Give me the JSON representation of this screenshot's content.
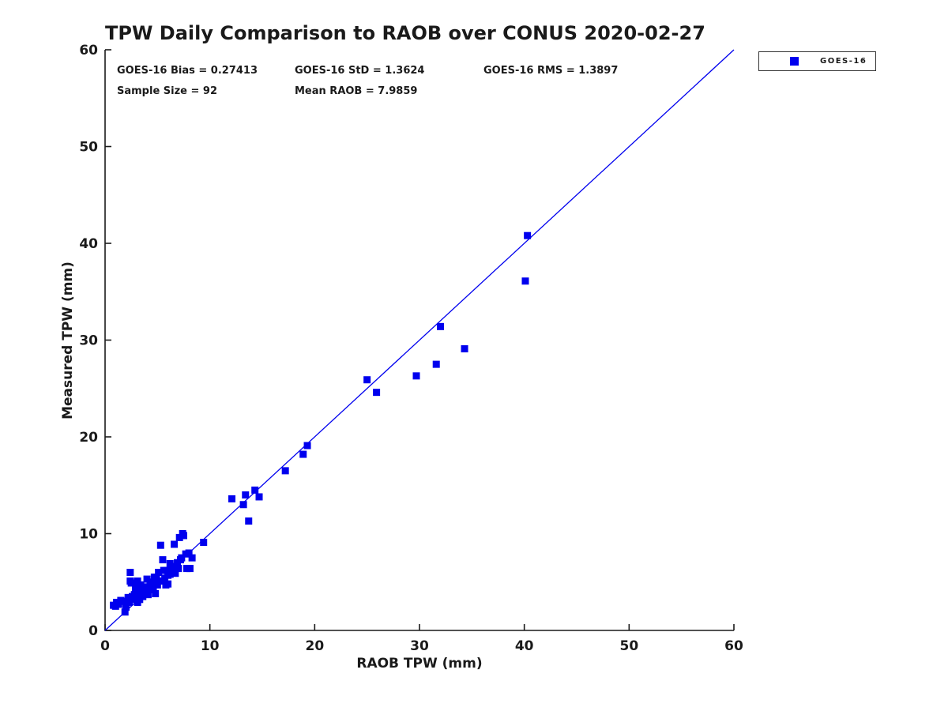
{
  "chart_data": {
    "type": "scatter",
    "title": "TPW Daily Comparison to RAOB over CONUS 2020-02-27",
    "xlabel": "RAOB TPW (mm)",
    "ylabel": "Measured TPW (mm)",
    "xlim": [
      0,
      60
    ],
    "ylim": [
      0,
      60
    ],
    "xticks": [
      0,
      10,
      20,
      30,
      40,
      50,
      60
    ],
    "yticks": [
      0,
      10,
      20,
      30,
      40,
      50,
      60
    ],
    "grid": false,
    "annotations": {
      "bias": "GOES-16 Bias = 0.27413",
      "std": "GOES-16 StD = 1.3624",
      "rms": "GOES-16 RMS = 1.3897",
      "sample_size": "Sample Size = 92",
      "mean_raob": "Mean RAOB = 7.9859"
    },
    "legend": {
      "position": "top-right-outside",
      "entries": [
        {
          "label": "GOES-16",
          "marker": "square",
          "color": "#0000ee"
        }
      ]
    },
    "reference_line": {
      "from": [
        0,
        0
      ],
      "to": [
        60,
        60
      ],
      "color": "#0000ee"
    },
    "axis_color": "#1a1a1a",
    "series": [
      {
        "name": "GOES-16",
        "marker": "square",
        "marker_size": 9,
        "color": "#0000ee",
        "points": [
          [
            0.8,
            2.6
          ],
          [
            1.0,
            2.5
          ],
          [
            1.1,
            2.9
          ],
          [
            1.3,
            2.7
          ],
          [
            1.5,
            3.1
          ],
          [
            1.8,
            3.0
          ],
          [
            1.9,
            1.9
          ],
          [
            2.0,
            2.4
          ],
          [
            2.2,
            3.4
          ],
          [
            2.3,
            2.9
          ],
          [
            2.4,
            5.1
          ],
          [
            2.4,
            6.0
          ],
          [
            2.5,
            4.9
          ],
          [
            2.6,
            3.5
          ],
          [
            2.7,
            3.2
          ],
          [
            2.8,
            3.7
          ],
          [
            2.9,
            4.3
          ],
          [
            3.0,
            3.3
          ],
          [
            3.0,
            4.4
          ],
          [
            3.1,
            2.9
          ],
          [
            3.1,
            5.1
          ],
          [
            3.2,
            3.6
          ],
          [
            3.3,
            3.2
          ],
          [
            3.3,
            4.2
          ],
          [
            3.4,
            4.7
          ],
          [
            3.5,
            3.9
          ],
          [
            3.5,
            4.1
          ],
          [
            3.6,
            3.5
          ],
          [
            3.7,
            4.4
          ],
          [
            3.8,
            3.8
          ],
          [
            3.9,
            4.5
          ],
          [
            4.0,
            4.1
          ],
          [
            4.0,
            5.3
          ],
          [
            4.1,
            3.7
          ],
          [
            4.2,
            4.4
          ],
          [
            4.3,
            4.9
          ],
          [
            4.4,
            4.2
          ],
          [
            4.5,
            5.0
          ],
          [
            4.6,
            4.5
          ],
          [
            4.7,
            5.5
          ],
          [
            4.8,
            4.8
          ],
          [
            4.8,
            3.8
          ],
          [
            4.9,
            5.5
          ],
          [
            5.0,
            4.7
          ],
          [
            5.1,
            6.0
          ],
          [
            5.2,
            5.1
          ],
          [
            5.3,
            8.8
          ],
          [
            5.4,
            5.1
          ],
          [
            5.5,
            7.3
          ],
          [
            5.6,
            6.2
          ],
          [
            5.7,
            5.4
          ],
          [
            5.8,
            4.7
          ],
          [
            5.9,
            6.2
          ],
          [
            6.0,
            5.7
          ],
          [
            6.0,
            4.8
          ],
          [
            6.2,
            6.9
          ],
          [
            6.2,
            5.8
          ],
          [
            6.4,
            6.6
          ],
          [
            6.5,
            6.0
          ],
          [
            6.6,
            8.9
          ],
          [
            6.7,
            5.9
          ],
          [
            6.8,
            6.6
          ],
          [
            6.9,
            7.0
          ],
          [
            7.0,
            6.4
          ],
          [
            7.1,
            9.6
          ],
          [
            7.2,
            7.3
          ],
          [
            7.3,
            7.5
          ],
          [
            7.4,
            10.0
          ],
          [
            7.5,
            9.8
          ],
          [
            7.7,
            7.9
          ],
          [
            7.8,
            6.4
          ],
          [
            8.0,
            8.0
          ],
          [
            8.1,
            6.4
          ],
          [
            8.3,
            7.5
          ],
          [
            9.4,
            9.1
          ],
          [
            12.1,
            13.6
          ],
          [
            13.2,
            13.0
          ],
          [
            13.4,
            14.0
          ],
          [
            13.7,
            11.3
          ],
          [
            14.3,
            14.5
          ],
          [
            14.7,
            13.8
          ],
          [
            17.2,
            16.5
          ],
          [
            18.9,
            18.2
          ],
          [
            19.3,
            19.1
          ],
          [
            25.0,
            25.9
          ],
          [
            25.9,
            24.6
          ],
          [
            29.7,
            26.3
          ],
          [
            31.6,
            27.5
          ],
          [
            32.0,
            31.4
          ],
          [
            34.3,
            29.1
          ],
          [
            40.1,
            36.1
          ],
          [
            40.3,
            40.8
          ]
        ]
      }
    ]
  }
}
